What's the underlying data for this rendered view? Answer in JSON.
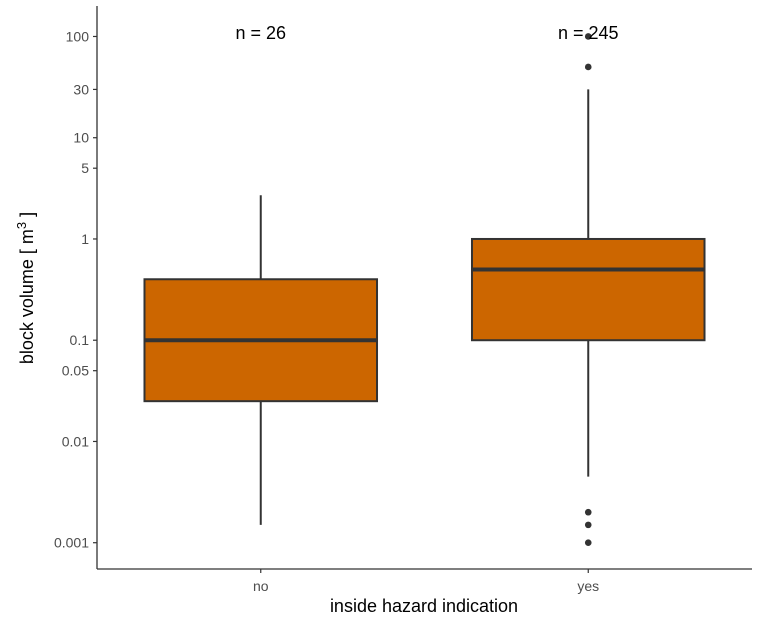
{
  "chart_data": {
    "type": "box",
    "xlabel": "inside hazard indication",
    "ylabel_main": "block volume [ m",
    "ylabel_sup": "3",
    "ylabel_end": " ]",
    "y_scale": "log10",
    "ylim": [
      0.00055,
      200
    ],
    "y_ticks": [
      {
        "value": 0.001,
        "label": "0.001"
      },
      {
        "value": 0.01,
        "label": "0.01"
      },
      {
        "value": 0.05,
        "label": "0.05"
      },
      {
        "value": 0.1,
        "label": "0.1"
      },
      {
        "value": 1,
        "label": "1"
      },
      {
        "value": 5,
        "label": "5"
      },
      {
        "value": 10,
        "label": "10"
      },
      {
        "value": 30,
        "label": "30"
      },
      {
        "value": 100,
        "label": "100"
      }
    ],
    "categories": [
      "no",
      "yes"
    ],
    "boxes": [
      {
        "category": "no",
        "count_label": "n = 26",
        "whisker_low": 0.0015,
        "q1": 0.025,
        "median": 0.1,
        "q3": 0.4,
        "whisker_high": 2.7,
        "outliers": []
      },
      {
        "category": "yes",
        "count_label": "n = 245",
        "whisker_low": 0.0045,
        "q1": 0.1,
        "median": 0.5,
        "q3": 1,
        "whisker_high": 30,
        "outliers": [
          0.001,
          0.0015,
          0.002,
          50,
          100
        ]
      }
    ],
    "colors": {
      "box_fill": "#CC6600",
      "box_stroke": "#333333",
      "axis": "#333333",
      "point": "#333333"
    },
    "grid": false,
    "legend": "none"
  }
}
